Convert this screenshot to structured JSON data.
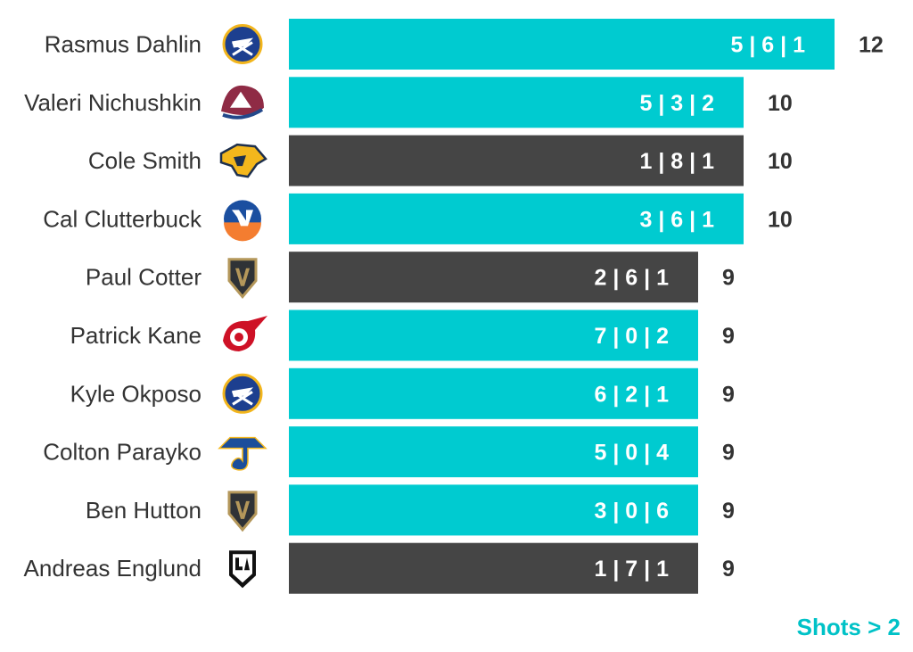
{
  "colors": {
    "teal": "#00cbd0",
    "dark": "#454545",
    "text": "#333333",
    "footer": "#00c2c7"
  },
  "footer_label": "Shots > 2",
  "chart_data": {
    "type": "bar",
    "orientation": "horizontal",
    "xlim": [
      0,
      12
    ],
    "grid": false,
    "categories": [
      "Rasmus Dahlin",
      "Valeri Nichushkin",
      "Cole Smith",
      "Cal Clutterbuck",
      "Paul Cotter",
      "Patrick Kane",
      "Kyle Okposo",
      "Colton Parayko",
      "Ben Hutton",
      "Andreas Englund"
    ],
    "values": [
      12,
      10,
      10,
      10,
      9,
      9,
      9,
      9,
      9,
      9
    ],
    "bar_labels": [
      "5 | 6 | 1",
      "5 | 3 | 2",
      "1 | 8 | 1",
      "3 | 6 | 1",
      "2 | 6 | 1",
      "7 | 0 | 2",
      "6 | 2 | 1",
      "5 | 0 | 4",
      "3 | 0 | 6",
      "1 | 7 | 1"
    ],
    "bar_colors": [
      "teal",
      "teal",
      "dark",
      "teal",
      "dark",
      "teal",
      "teal",
      "teal",
      "teal",
      "dark"
    ],
    "team_icons": [
      "sabres-logo-icon",
      "avalanche-logo-icon",
      "predators-logo-icon",
      "islanders-logo-icon",
      "golden-knights-logo-icon",
      "red-wings-logo-icon",
      "sabres-logo-icon",
      "blues-logo-icon",
      "golden-knights-logo-icon",
      "kings-logo-icon"
    ]
  }
}
